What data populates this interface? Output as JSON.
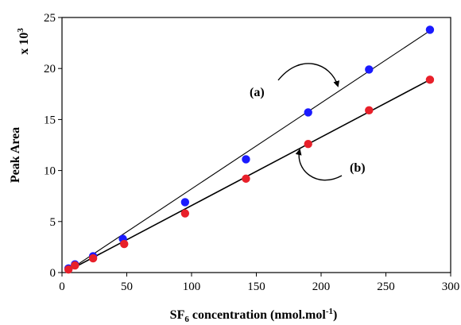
{
  "chart_data": {
    "type": "scatter",
    "xlabel_main": "SF",
    "xlabel_sub": "6",
    "xlabel_rest": " concentration (nmol.mol",
    "xlabel_sup": "-1",
    "xlabel_end": ")",
    "ylabel": "Peak Area",
    "y_multiplier_prefix": "x 10",
    "y_multiplier_sup": "3",
    "xlim": [
      0,
      300
    ],
    "ylim": [
      0,
      25
    ],
    "x_ticks": [
      0,
      50,
      100,
      150,
      200,
      250,
      300
    ],
    "y_ticks": [
      0,
      5,
      10,
      15,
      20,
      25
    ],
    "grid": false,
    "series": [
      {
        "name": "(a)",
        "color": "#1a1aff",
        "points": [
          [
            5,
            0.4
          ],
          [
            10,
            0.8
          ],
          [
            24,
            1.6
          ],
          [
            47,
            3.3
          ],
          [
            95,
            6.9
          ],
          [
            142,
            11.1
          ],
          [
            190,
            15.7
          ],
          [
            237,
            19.9
          ],
          [
            284,
            23.8
          ]
        ],
        "fit_line": [
          [
            5,
            0.2
          ],
          [
            284,
            23.7
          ]
        ]
      },
      {
        "name": "(b)",
        "color": "#e8202a",
        "points": [
          [
            5,
            0.3
          ],
          [
            10,
            0.7
          ],
          [
            24,
            1.4
          ],
          [
            48,
            2.8
          ],
          [
            95,
            5.8
          ],
          [
            142,
            9.2
          ],
          [
            190,
            12.6
          ],
          [
            237,
            15.9
          ],
          [
            284,
            18.9
          ]
        ],
        "fit_line": [
          [
            5,
            0.2
          ],
          [
            284,
            18.9
          ]
        ]
      }
    ],
    "annotations": [
      {
        "label": "(a)",
        "target_series": "(a)"
      },
      {
        "label": "(b)",
        "target_series": "(b)"
      }
    ]
  }
}
